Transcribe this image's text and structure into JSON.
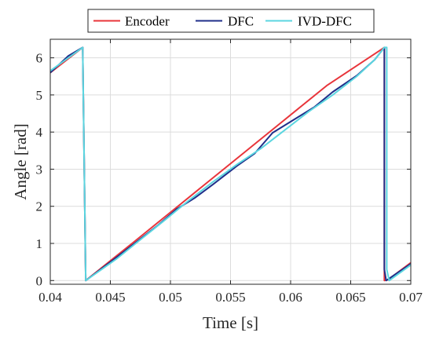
{
  "chart_data": {
    "type": "line",
    "title": "",
    "xlabel": "Time [s]",
    "ylabel": "Angle [rad]",
    "xlim": [
      0.04,
      0.07
    ],
    "ylim": [
      -0.1,
      6.5
    ],
    "xticks": [
      0.04,
      0.045,
      0.05,
      0.055,
      0.06,
      0.065,
      0.07
    ],
    "xtick_labels": [
      "0.04",
      "0.045",
      "0.05",
      "0.055",
      "0.06",
      "0.065",
      "0.07"
    ],
    "yticks": [
      0,
      1,
      2,
      3,
      4,
      5,
      6
    ],
    "ytick_labels": [
      "0",
      "1",
      "2",
      "3",
      "4",
      "5",
      "6"
    ],
    "grid": true,
    "legend_position": "top",
    "series": [
      {
        "name": "Encoder",
        "color": "#e8343a",
        "x": [
          0.04,
          0.0427,
          0.0427,
          0.04295,
          0.047,
          0.051,
          0.055,
          0.059,
          0.063,
          0.0678,
          0.0678,
          0.0681,
          0.07
        ],
        "y": [
          5.6,
          6.28,
          6.2,
          0.0,
          1.05,
          2.1,
          3.15,
          4.2,
          5.25,
          6.28,
          0.0,
          0.02,
          0.48
        ]
      },
      {
        "name": "DFC",
        "color": "#1f2f8a",
        "x": [
          0.04,
          0.0415,
          0.0427,
          0.0427,
          0.04295,
          0.0455,
          0.0475,
          0.049,
          0.0505,
          0.052,
          0.0535,
          0.0555,
          0.057,
          0.0585,
          0.0605,
          0.062,
          0.0635,
          0.0655,
          0.067,
          0.0678,
          0.0678,
          0.06795,
          0.07
        ],
        "y": [
          5.6,
          6.05,
          6.28,
          6.2,
          0.0,
          0.62,
          1.12,
          1.5,
          1.92,
          2.22,
          2.58,
          3.08,
          3.42,
          3.98,
          4.38,
          4.68,
          5.08,
          5.52,
          5.95,
          6.28,
          0.3,
          0.0,
          0.45
        ]
      },
      {
        "name": "IVD-DFC",
        "color": "#5bd6e0",
        "x": [
          0.04,
          0.0415,
          0.0427,
          0.0427,
          0.04295,
          0.0455,
          0.0475,
          0.0495,
          0.0515,
          0.0535,
          0.0555,
          0.0575,
          0.0595,
          0.0615,
          0.0635,
          0.0655,
          0.067,
          0.0678,
          0.068,
          0.068,
          0.0682,
          0.07
        ],
        "y": [
          5.65,
          6.0,
          6.28,
          6.2,
          0.0,
          0.58,
          1.1,
          1.62,
          2.15,
          2.65,
          3.12,
          3.55,
          4.05,
          4.55,
          5.0,
          5.5,
          5.95,
          6.28,
          6.28,
          0.3,
          0.0,
          0.42
        ]
      }
    ]
  }
}
